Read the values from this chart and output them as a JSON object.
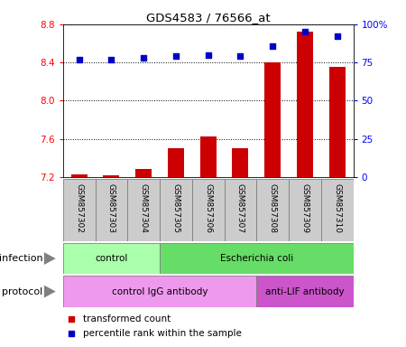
{
  "title": "GDS4583 / 76566_at",
  "samples": [
    "GSM857302",
    "GSM857303",
    "GSM857304",
    "GSM857305",
    "GSM857306",
    "GSM857307",
    "GSM857308",
    "GSM857309",
    "GSM857310"
  ],
  "transformed_count": [
    7.23,
    7.22,
    7.28,
    7.5,
    7.62,
    7.5,
    8.4,
    8.72,
    8.35
  ],
  "percentile_rank": [
    77,
    77,
    78,
    79,
    80,
    79,
    86,
    95,
    92
  ],
  "ylim_left": [
    7.2,
    8.8
  ],
  "ylim_right": [
    0,
    100
  ],
  "yticks_left": [
    7.2,
    7.6,
    8.0,
    8.4,
    8.8
  ],
  "yticks_right": [
    0,
    25,
    50,
    75,
    100
  ],
  "ytick_labels_right": [
    "0",
    "25",
    "50",
    "75",
    "100%"
  ],
  "bar_color": "#cc0000",
  "dot_color": "#0000cc",
  "infection_labels": [
    "control",
    "Escherichia coli"
  ],
  "infection_groups": [
    [
      0,
      1,
      2
    ],
    [
      3,
      4,
      5,
      6,
      7,
      8
    ]
  ],
  "infection_colors_light": [
    "#aaffaa",
    "#66dd66"
  ],
  "protocol_labels": [
    "control IgG antibody",
    "anti-LIF antibody"
  ],
  "protocol_groups": [
    [
      0,
      1,
      2,
      3,
      4,
      5
    ],
    [
      6,
      7,
      8
    ]
  ],
  "protocol_colors": [
    "#ee99ee",
    "#cc55cc"
  ],
  "legend_bar_label": "transformed count",
  "legend_dot_label": "percentile rank within the sample",
  "tick_area_color": "#cccccc",
  "fig_bg": "#ffffff",
  "chart_bg": "#ffffff",
  "n_samples": 9
}
